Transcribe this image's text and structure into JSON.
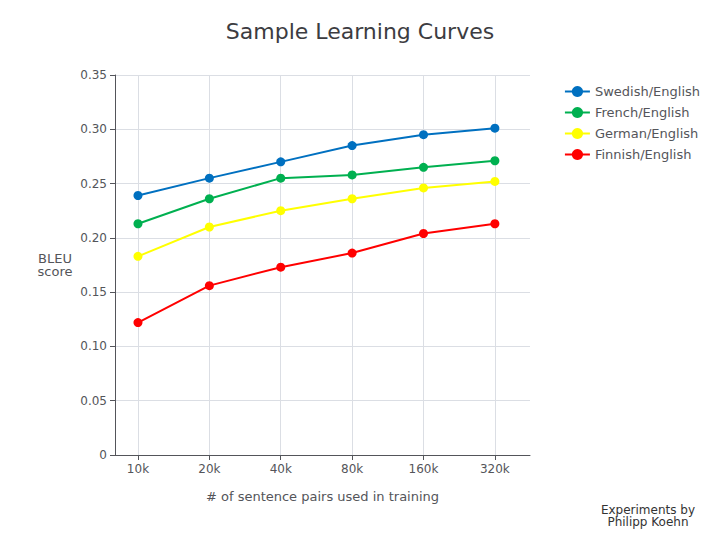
{
  "chart_data": {
    "type": "line",
    "title": "Sample Learning Curves",
    "x_label": "# of sentence pairs used in training",
    "y_label": "BLEU\nscore",
    "annotations": [
      "Experiments by\nPhilipp Koehn"
    ],
    "x": [
      10000,
      20000,
      40000,
      80000,
      160000,
      320000
    ],
    "series": [
      {
        "name": "Swedish/English",
        "color": "#0070C0",
        "values": [
          0.239,
          0.255,
          0.27,
          0.285,
          0.295,
          0.301
        ]
      },
      {
        "name": "French/English",
        "color": "#00B050",
        "values": [
          0.213,
          0.236,
          0.255,
          0.258,
          0.265,
          0.271
        ]
      },
      {
        "name": "German/English",
        "color": "#FFFF00",
        "values": [
          0.183,
          0.21,
          0.225,
          0.236,
          0.246,
          0.252
        ]
      },
      {
        "name": "Finnish/English",
        "color": "#FF0000",
        "values": [
          0.122,
          0.156,
          0.173,
          0.186,
          0.204,
          0.213
        ]
      }
    ],
    "log": "x",
    "xlim": [
      8000,
      450000
    ],
    "xticks": [
      {
        "value": 10000,
        "label": "10k"
      },
      {
        "value": 20000,
        "label": "20k"
      },
      {
        "value": 40000,
        "label": "40k"
      },
      {
        "value": 80000,
        "label": "80k"
      },
      {
        "value": 160000,
        "label": "160k"
      },
      {
        "value": 320000,
        "label": "320k"
      }
    ],
    "ylim": [
      0,
      0.35
    ],
    "yticks": [
      0,
      0.05,
      {
        "value": 0.1,
        "label": "0.10"
      },
      0.15,
      {
        "value": 0.2,
        "label": "0.20"
      },
      0.25,
      {
        "value": 0.3,
        "label": "0.30"
      },
      0.35
    ],
    "grid": true,
    "legend": "right",
    "marker": "circle"
  }
}
